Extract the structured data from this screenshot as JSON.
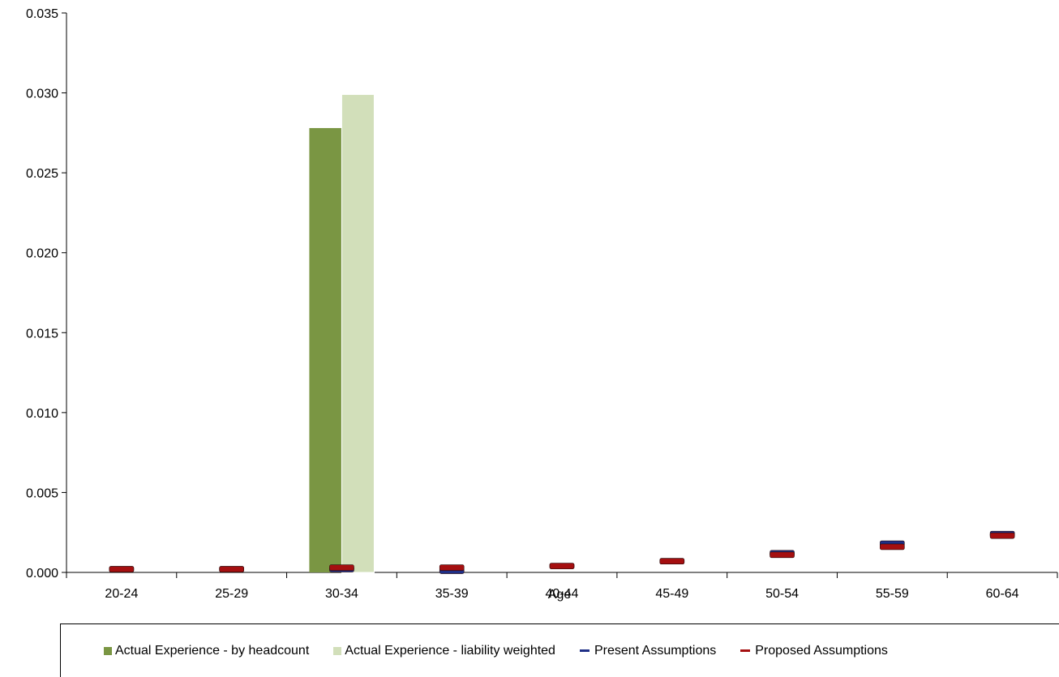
{
  "chart_data": {
    "type": "bar",
    "xlabel": "Age",
    "ylabel": "",
    "ylim": [
      0,
      0.035
    ],
    "yticks": [
      "0.000",
      "0.005",
      "0.010",
      "0.015",
      "0.020",
      "0.025",
      "0.030",
      "0.035"
    ],
    "categories": [
      "20-24",
      "25-29",
      "30-34",
      "35-39",
      "40-44",
      "45-49",
      "50-54",
      "55-59",
      "60-64"
    ],
    "series": [
      {
        "name": "Actual Experience - by headcount",
        "kind": "bar",
        "color": "#7a9643",
        "values": [
          0,
          0,
          0.0278,
          0,
          0,
          0,
          0,
          0,
          0
        ]
      },
      {
        "name": "Actual Experience - liability weighted",
        "kind": "bar",
        "color": "#d2dfba",
        "values": [
          0,
          0,
          0.0299,
          0,
          0,
          0,
          0,
          0,
          0
        ]
      },
      {
        "name": "Present Assumptions",
        "kind": "marker",
        "color": "#1f2f86",
        "values": [
          0.0002,
          0.0002,
          0.0002,
          0.0001,
          0.0004,
          0.0007,
          0.0012,
          0.0018,
          0.0024
        ]
      },
      {
        "name": "Proposed Assumptions",
        "kind": "marker",
        "color": "#a50f10",
        "values": [
          0.0002,
          0.0002,
          0.0003,
          0.0003,
          0.0004,
          0.0007,
          0.0011,
          0.0016,
          0.0023
        ]
      }
    ],
    "grid": false,
    "legend_position": "bottom"
  }
}
